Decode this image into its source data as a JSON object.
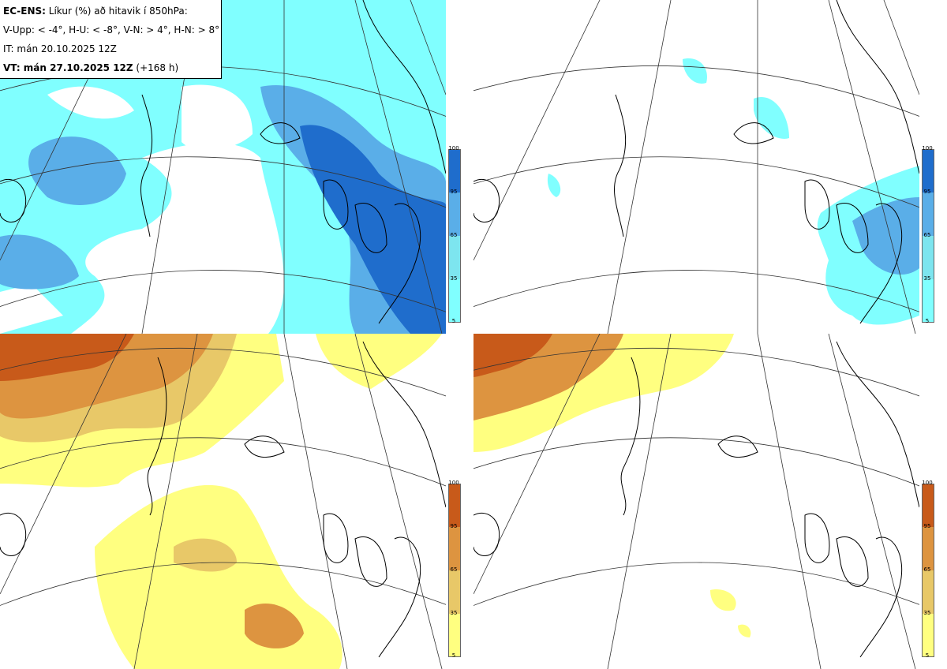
{
  "header": {
    "model": "EC-ENS:",
    "title": " Líkur (%) að hitavik í 850hPa:",
    "thresholds": "V-Upp: < -4°, H-U: < -8°, V-N: > 4°, H-N: > 8°",
    "init_time": "IT: mán 20.10.2025 12Z",
    "valid_label": "VT: mán 27.10.2025 12Z",
    "valid_offset": " (+168 h)"
  },
  "colorbars": {
    "cold": {
      "ticks": [
        "100",
        "95",
        "65",
        "35",
        "5"
      ],
      "colors": [
        "#1f6dcc",
        "#5aaee8",
        "#7de5ef",
        "#80ffff"
      ]
    },
    "warm": {
      "ticks": [
        "100",
        "95",
        "65",
        "35",
        "5"
      ],
      "colors": [
        "#c85a1a",
        "#dd9440",
        "#e8c868",
        "#ffff80"
      ]
    }
  },
  "panels": [
    {
      "id": "cold-below-4",
      "theme": "cold"
    },
    {
      "id": "cold-below-8",
      "theme": "cold"
    },
    {
      "id": "warm-above-4",
      "theme": "warm"
    },
    {
      "id": "warm-above-8",
      "theme": "warm"
    }
  ]
}
